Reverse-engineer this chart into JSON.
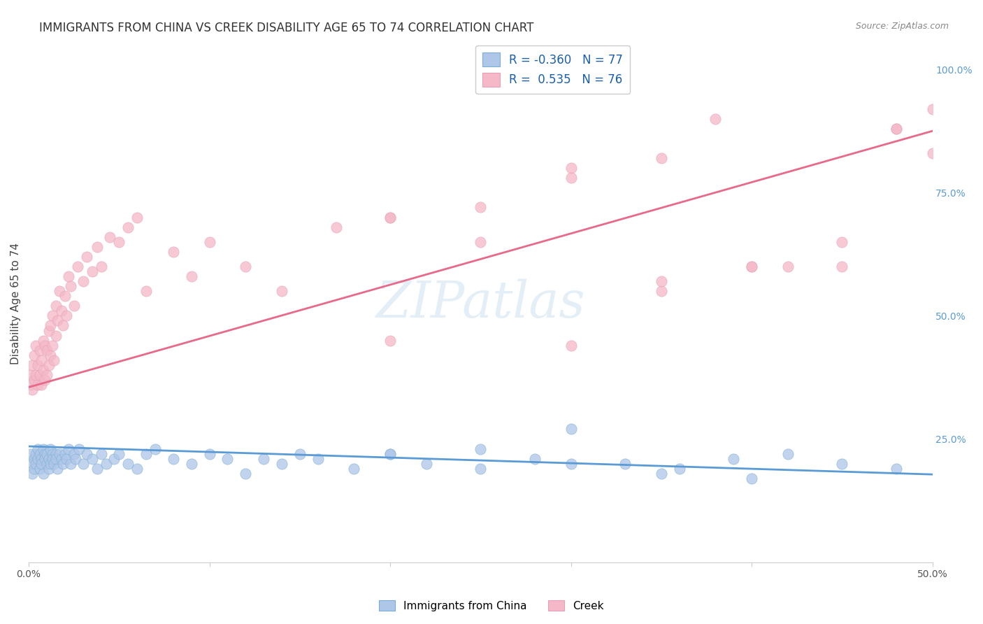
{
  "title": "IMMIGRANTS FROM CHINA VS CREEK DISABILITY AGE 65 TO 74 CORRELATION CHART",
  "source": "Source: ZipAtlas.com",
  "ylabel": "Disability Age 65 to 74",
  "xlim": [
    0.0,
    0.5
  ],
  "ylim": [
    0.0,
    1.05
  ],
  "ytick_values": [
    0.0,
    0.25,
    0.5,
    0.75,
    1.0
  ],
  "ytick_labels": [
    "",
    "25.0%",
    "50.0%",
    "75.0%",
    "100.0%"
  ],
  "xtick_values": [
    0.0,
    0.1,
    0.2,
    0.3,
    0.4,
    0.5
  ],
  "xtick_labels": [
    "0.0%",
    "",
    "",
    "",
    "",
    "50.0%"
  ],
  "legend_entries": [
    {
      "label": "Immigrants from China",
      "color": "#aec6e8",
      "R": "-0.360",
      "N": "77"
    },
    {
      "label": "Creek",
      "color": "#f4b8c8",
      "R": "0.535",
      "N": "76"
    }
  ],
  "blue_scatter_x": [
    0.001,
    0.002,
    0.002,
    0.003,
    0.003,
    0.004,
    0.004,
    0.005,
    0.005,
    0.006,
    0.006,
    0.007,
    0.007,
    0.008,
    0.008,
    0.009,
    0.009,
    0.01,
    0.01,
    0.011,
    0.011,
    0.012,
    0.012,
    0.013,
    0.013,
    0.014,
    0.015,
    0.015,
    0.016,
    0.017,
    0.018,
    0.019,
    0.02,
    0.021,
    0.022,
    0.023,
    0.025,
    0.026,
    0.028,
    0.03,
    0.032,
    0.035,
    0.038,
    0.04,
    0.043,
    0.047,
    0.05,
    0.055,
    0.06,
    0.065,
    0.07,
    0.08,
    0.09,
    0.1,
    0.11,
    0.12,
    0.13,
    0.14,
    0.15,
    0.16,
    0.18,
    0.2,
    0.22,
    0.25,
    0.28,
    0.3,
    0.33,
    0.36,
    0.39,
    0.42,
    0.45,
    0.3,
    0.2,
    0.25,
    0.35,
    0.4,
    0.48
  ],
  "blue_scatter_y": [
    0.22,
    0.2,
    0.18,
    0.21,
    0.19,
    0.22,
    0.2,
    0.23,
    0.21,
    0.19,
    0.22,
    0.21,
    0.2,
    0.23,
    0.18,
    0.22,
    0.21,
    0.2,
    0.22,
    0.21,
    0.19,
    0.23,
    0.2,
    0.22,
    0.21,
    0.2,
    0.22,
    0.21,
    0.19,
    0.22,
    0.21,
    0.2,
    0.22,
    0.21,
    0.23,
    0.2,
    0.22,
    0.21,
    0.23,
    0.2,
    0.22,
    0.21,
    0.19,
    0.22,
    0.2,
    0.21,
    0.22,
    0.2,
    0.19,
    0.22,
    0.23,
    0.21,
    0.2,
    0.22,
    0.21,
    0.18,
    0.21,
    0.2,
    0.22,
    0.21,
    0.19,
    0.22,
    0.2,
    0.23,
    0.21,
    0.2,
    0.2,
    0.19,
    0.21,
    0.22,
    0.2,
    0.27,
    0.22,
    0.19,
    0.18,
    0.17,
    0.19
  ],
  "pink_scatter_x": [
    0.001,
    0.001,
    0.002,
    0.002,
    0.003,
    0.003,
    0.004,
    0.004,
    0.005,
    0.005,
    0.006,
    0.006,
    0.007,
    0.007,
    0.008,
    0.008,
    0.009,
    0.009,
    0.01,
    0.01,
    0.011,
    0.011,
    0.012,
    0.012,
    0.013,
    0.013,
    0.014,
    0.015,
    0.015,
    0.016,
    0.017,
    0.018,
    0.019,
    0.02,
    0.021,
    0.022,
    0.023,
    0.025,
    0.027,
    0.03,
    0.032,
    0.035,
    0.038,
    0.04,
    0.045,
    0.05,
    0.055,
    0.06,
    0.065,
    0.08,
    0.09,
    0.1,
    0.12,
    0.14,
    0.17,
    0.2,
    0.25,
    0.3,
    0.35,
    0.38,
    0.4,
    0.42,
    0.45,
    0.48,
    0.2,
    0.25,
    0.3,
    0.35,
    0.4,
    0.45,
    0.48,
    0.5,
    0.5,
    0.3,
    0.35,
    0.2
  ],
  "pink_scatter_y": [
    0.36,
    0.38,
    0.35,
    0.4,
    0.37,
    0.42,
    0.38,
    0.44,
    0.36,
    0.4,
    0.38,
    0.43,
    0.36,
    0.41,
    0.39,
    0.45,
    0.37,
    0.44,
    0.38,
    0.43,
    0.4,
    0.47,
    0.42,
    0.48,
    0.44,
    0.5,
    0.41,
    0.46,
    0.52,
    0.49,
    0.55,
    0.51,
    0.48,
    0.54,
    0.5,
    0.58,
    0.56,
    0.52,
    0.6,
    0.57,
    0.62,
    0.59,
    0.64,
    0.6,
    0.66,
    0.65,
    0.68,
    0.7,
    0.55,
    0.63,
    0.58,
    0.65,
    0.6,
    0.55,
    0.68,
    0.45,
    0.65,
    0.8,
    0.82,
    0.9,
    0.6,
    0.6,
    0.6,
    0.88,
    0.7,
    0.72,
    0.78,
    0.55,
    0.6,
    0.65,
    0.88,
    0.83,
    0.92,
    0.44,
    0.57,
    0.7
  ],
  "blue_line_x": [
    0.0,
    0.5
  ],
  "blue_line_y": [
    0.235,
    0.178
  ],
  "pink_line_x": [
    0.0,
    0.5
  ],
  "pink_line_y": [
    0.355,
    0.875
  ],
  "blue_color": "#5b9bd5",
  "pink_color": "#e8698a",
  "blue_scatter_color": "#aec6e8",
  "pink_scatter_color": "#f4b8c8",
  "background_color": "#ffffff",
  "grid_color": "#d8d8d8",
  "title_fontsize": 12,
  "axis_label_fontsize": 11,
  "tick_fontsize": 10
}
